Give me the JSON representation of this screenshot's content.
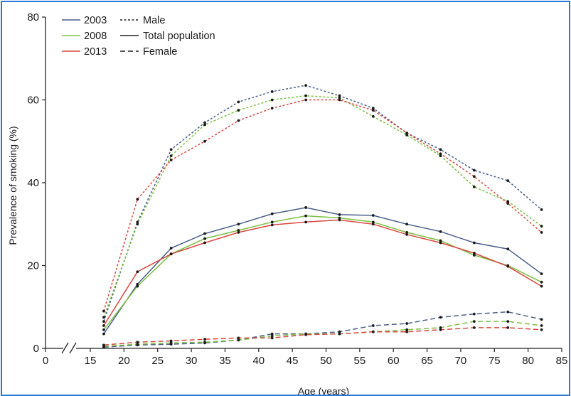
{
  "chart_data": {
    "type": "line",
    "title": "",
    "xlabel": "Age (years)",
    "ylabel": "Prevalence of smoking (%)",
    "xlim": [
      0,
      85
    ],
    "ylim": [
      0,
      80
    ],
    "x_axis_break": true,
    "xticks": [
      0,
      15,
      20,
      25,
      30,
      35,
      40,
      45,
      50,
      55,
      60,
      65,
      70,
      75,
      80,
      85
    ],
    "yticks": [
      0,
      20,
      40,
      60,
      80
    ],
    "grid": false,
    "legend_position": "top-left",
    "legend": {
      "years": [
        {
          "label": "2003",
          "color": "#4a5f8a"
        },
        {
          "label": "2008",
          "color": "#7bbf3f"
        },
        {
          "label": "2013",
          "color": "#d9473f"
        }
      ],
      "groups": [
        {
          "label": "Male",
          "dash": "dotted"
        },
        {
          "label": "Total population",
          "dash": "solid"
        },
        {
          "label": "Female",
          "dash": "dashed"
        }
      ]
    },
    "x": [
      17,
      22,
      27,
      32,
      37,
      42,
      47,
      52,
      57,
      62,
      67,
      72,
      77,
      82
    ],
    "series": [
      {
        "year": "2003",
        "group": "Male",
        "color": "#4a5f8a",
        "dash": "dotted",
        "values": [
          6.5,
          30.5,
          48,
          54.5,
          59.5,
          62,
          63.5,
          61,
          58,
          52,
          48,
          43,
          40.5,
          33.5
        ]
      },
      {
        "year": "2008",
        "group": "Male",
        "color": "#7bbf3f",
        "dash": "dotted",
        "values": [
          7.5,
          30,
          46.5,
          54,
          57.5,
          60,
          61,
          60.5,
          56,
          51.5,
          46.5,
          39,
          35.5,
          29.5
        ]
      },
      {
        "year": "2013",
        "group": "Male",
        "color": "#d9473f",
        "dash": "dotted",
        "values": [
          9,
          36,
          45.5,
          50,
          55,
          58,
          60,
          60,
          57.5,
          52,
          47,
          41.5,
          35,
          28
        ]
      },
      {
        "year": "2003",
        "group": "Total population",
        "color": "#4a5f8a",
        "dash": "solid",
        "values": [
          3.5,
          15.5,
          24.2,
          27.7,
          30,
          32.5,
          34,
          32.3,
          32.1,
          30,
          28.2,
          25.5,
          24,
          18
        ]
      },
      {
        "year": "2008",
        "group": "Total population",
        "color": "#7bbf3f",
        "dash": "solid",
        "values": [
          4.5,
          15,
          22.8,
          26.5,
          28.5,
          30.5,
          32,
          31.5,
          30.5,
          28,
          26,
          22.5,
          20,
          16
        ]
      },
      {
        "year": "2013",
        "group": "Total population",
        "color": "#d9473f",
        "dash": "solid",
        "values": [
          5.5,
          18.5,
          22.8,
          25.5,
          28,
          29.8,
          30.5,
          31,
          30,
          27.5,
          25.5,
          23,
          19.8,
          15
        ]
      },
      {
        "year": "2003",
        "group": "Female",
        "color": "#4a5f8a",
        "dash": "dashed",
        "values": [
          0.3,
          0.8,
          1,
          1.3,
          2,
          3.5,
          3.5,
          4,
          5.5,
          6,
          7.5,
          8.3,
          8.8,
          7
        ]
      },
      {
        "year": "2008",
        "group": "Female",
        "color": "#7bbf3f",
        "dash": "dashed",
        "values": [
          0.5,
          1,
          1.3,
          1.5,
          2,
          3,
          3.5,
          3.5,
          4,
          4.5,
          5,
          6.5,
          6.5,
          5.5
        ]
      },
      {
        "year": "2013",
        "group": "Female",
        "color": "#d9473f",
        "dash": "dashed",
        "values": [
          0.8,
          1.5,
          1.8,
          2.2,
          2.5,
          2.5,
          3.3,
          3.5,
          4,
          4,
          4.5,
          5,
          5,
          4.5
        ]
      }
    ]
  }
}
